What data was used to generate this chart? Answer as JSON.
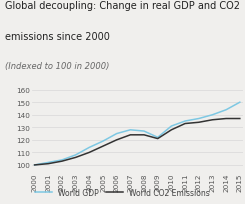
{
  "title_line1": "Global decoupling: Change in real GDP and CO2",
  "title_line2": "emissions since 2000",
  "subtitle": "(Indexed to 100 in 2000)",
  "years": [
    2000,
    2001,
    2002,
    2003,
    2004,
    2005,
    2006,
    2007,
    2008,
    2009,
    2010,
    2011,
    2012,
    2013,
    2014,
    2015
  ],
  "co2": [
    100,
    101,
    103,
    106,
    110,
    115,
    120,
    124,
    124,
    121,
    128,
    133,
    134,
    136,
    137,
    137
  ],
  "gdp": [
    100,
    102,
    104,
    108,
    114,
    119,
    125,
    128,
    127,
    122,
    131,
    135,
    137,
    140,
    144,
    150
  ],
  "co2_color": "#333333",
  "gdp_color": "#7ec8e3",
  "ylim": [
    95,
    162
  ],
  "yticks": [
    100,
    110,
    120,
    130,
    140,
    150,
    160
  ],
  "legend_co2": "World CO2 Emissions",
  "legend_gdp": "World GDP",
  "bg_color": "#f0efed",
  "grid_color": "#d8d8d8",
  "title_fontsize": 7.0,
  "subtitle_fontsize": 6.0,
  "tick_fontsize": 5.2,
  "legend_fontsize": 5.5,
  "line_width": 1.1
}
